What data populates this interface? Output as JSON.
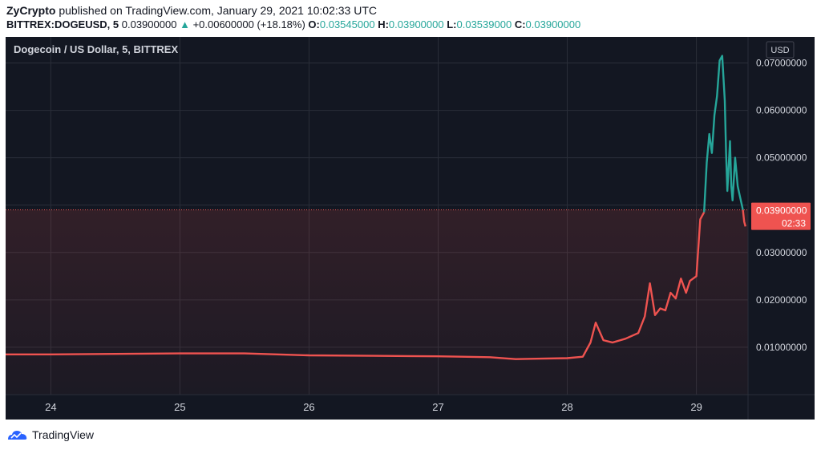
{
  "header": {
    "publisher": "ZyCrypto",
    "published_text": "published on TradingView.com, January 29, 2021 10:02:33 UTC",
    "symbol": "BITTREX:DOGEUSD, 5",
    "last": "0.03900000",
    "change_arrow": "▲",
    "change": "+0.00600000 (+18.18%)",
    "o_label": "O:",
    "o_value": "0.03545000",
    "h_label": "H:",
    "h_value": "0.03900000",
    "l_label": "L:",
    "l_value": "0.03539000",
    "c_label": "C:",
    "c_value": "0.03900000"
  },
  "chart": {
    "title": "Dogecoin / US Dollar, 5, BITTREX",
    "currency": "USD",
    "price_label": "0.03900000",
    "countdown_label": "02:33"
  },
  "colors": {
    "background": "#131722",
    "grid": "#2a2e39",
    "down": "#ef5350",
    "up": "#26a69a",
    "text": "#d1d4dc"
  },
  "footer": {
    "brand": "TradingView",
    "logo_icon": "tradingview-logo-icon"
  },
  "chart_data": {
    "type": "line",
    "x_ticks": [
      "24",
      "25",
      "26",
      "27",
      "28",
      "29"
    ],
    "y_ticks": [
      "0.01000000",
      "0.02000000",
      "0.03000000",
      "0.04000000",
      "0.05000000",
      "0.06000000",
      "0.07000000"
    ],
    "y_tick_values": [
      0.01,
      0.02,
      0.03,
      0.04,
      0.05,
      0.06,
      0.07
    ],
    "xlim": [
      23.65,
      29.4
    ],
    "ylim": [
      0.0,
      0.0755
    ],
    "series": [
      {
        "segment": "below-last",
        "color": "#ef5350",
        "x": [
          23.65,
          24.0,
          24.5,
          25.0,
          25.5,
          26.0,
          26.5,
          27.0,
          27.4,
          27.6,
          27.8,
          28.0,
          28.12,
          28.18,
          28.22,
          28.28,
          28.35,
          28.45,
          28.55,
          28.6,
          28.64,
          28.68,
          28.72,
          28.76,
          28.8,
          28.84,
          28.88,
          28.92,
          28.95,
          29.0,
          29.03,
          29.06
        ],
        "y": [
          0.0085,
          0.0085,
          0.0086,
          0.0087,
          0.0087,
          0.0083,
          0.0082,
          0.0081,
          0.0079,
          0.0075,
          0.0076,
          0.0077,
          0.008,
          0.011,
          0.0152,
          0.0115,
          0.011,
          0.0118,
          0.013,
          0.0165,
          0.0235,
          0.0168,
          0.0182,
          0.0178,
          0.0215,
          0.0203,
          0.0245,
          0.0215,
          0.024,
          0.025,
          0.037,
          0.0385
        ]
      },
      {
        "segment": "above-last",
        "color": "#26a69a",
        "x": [
          29.06,
          29.08,
          29.1,
          29.12,
          29.14,
          29.16,
          29.18,
          29.2,
          29.22,
          29.23,
          29.24,
          29.26,
          29.27,
          29.28,
          29.3,
          29.32,
          29.34,
          29.36
        ],
        "y": [
          0.0385,
          0.049,
          0.055,
          0.051,
          0.059,
          0.063,
          0.0705,
          0.0715,
          0.062,
          0.051,
          0.043,
          0.0535,
          0.044,
          0.041,
          0.05,
          0.044,
          0.0415,
          0.039
        ]
      },
      {
        "segment": "last-tail",
        "color": "#ef5350",
        "x": [
          29.36,
          29.37,
          29.38
        ],
        "y": [
          0.039,
          0.0365,
          0.0355
        ]
      }
    ],
    "last_price": 0.039
  }
}
